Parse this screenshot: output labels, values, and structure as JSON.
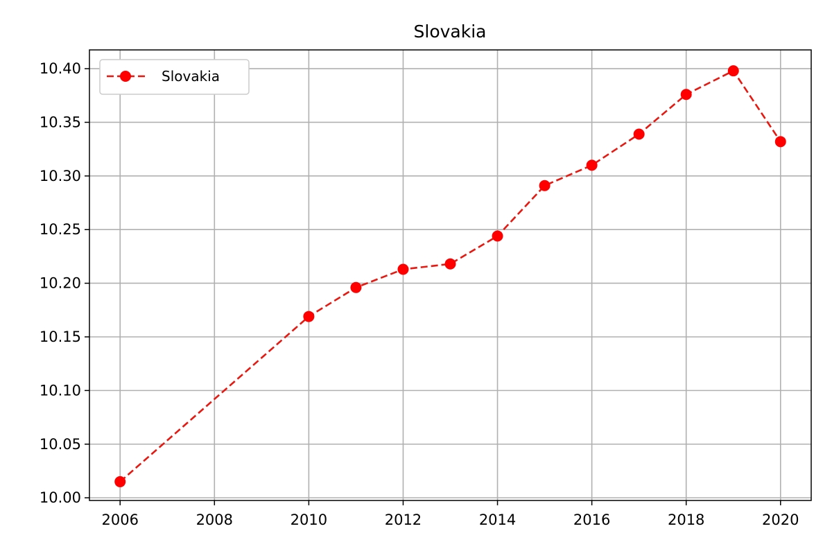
{
  "chart_data": {
    "type": "line",
    "title": "Slovakia",
    "xlabel": "",
    "ylabel": "",
    "xlim": [
      2005.35,
      2020.65
    ],
    "ylim": [
      9.9975,
      10.4175
    ],
    "x_ticks": [
      2006,
      2008,
      2010,
      2012,
      2014,
      2016,
      2018,
      2020
    ],
    "y_ticks": [
      10.0,
      10.05,
      10.1,
      10.15,
      10.2,
      10.25,
      10.3,
      10.35,
      10.4
    ],
    "y_tick_labels": [
      "10.00",
      "10.05",
      "10.10",
      "10.15",
      "10.20",
      "10.25",
      "10.30",
      "10.35",
      "10.40"
    ],
    "grid": true,
    "legend": {
      "position": "upper-left",
      "entries": [
        "Slovakia"
      ]
    },
    "series": [
      {
        "name": "Slovakia",
        "color": "#ff0000",
        "line_style": "dashed",
        "marker": "circle",
        "x": [
          2006,
          2010,
          2011,
          2012,
          2013,
          2014,
          2015,
          2016,
          2017,
          2018,
          2019,
          2020
        ],
        "y": [
          10.015,
          10.169,
          10.196,
          10.213,
          10.218,
          10.244,
          10.291,
          10.31,
          10.339,
          10.376,
          10.398,
          10.332
        ]
      }
    ]
  }
}
